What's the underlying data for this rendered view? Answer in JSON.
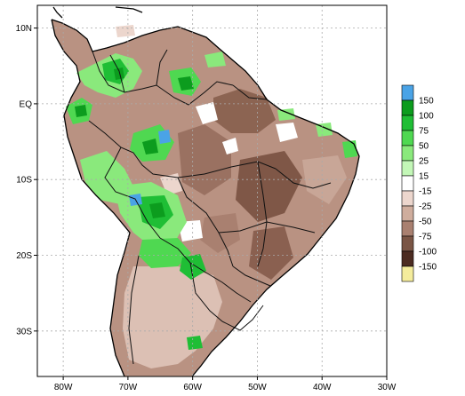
{
  "map": {
    "y_axis_labels": [
      {
        "text": "10N",
        "lat": 10
      },
      {
        "text": "EQ",
        "lat": 0
      },
      {
        "text": "10S",
        "lat": -10
      },
      {
        "text": "20S",
        "lat": -20
      },
      {
        "text": "30S",
        "lat": -30
      }
    ],
    "x_axis_labels": [
      {
        "text": "80W",
        "lon": -80
      },
      {
        "text": "70W",
        "lon": -70
      },
      {
        "text": "60W",
        "lon": -60
      },
      {
        "text": "50W",
        "lon": -50
      },
      {
        "text": "40W",
        "lon": -40
      },
      {
        "text": "30W",
        "lon": -30
      }
    ],
    "extent": {
      "lon_min": -84,
      "lon_max": -30,
      "lat_min": -36,
      "lat_max": 13
    },
    "regions": [
      {
        "name": "legend-upper-east-amazon",
        "category": "150",
        "color": "#4aa3e6"
      }
    ]
  },
  "legend": {
    "items": [
      {
        "label": "150",
        "color": "#4aa3e6"
      },
      {
        "label": "100",
        "color": "#0c9c1e"
      },
      {
        "label": "75",
        "color": "#1fbe35"
      },
      {
        "label": "50",
        "color": "#4fd851"
      },
      {
        "label": "25",
        "color": "#8ae97c"
      },
      {
        "label": "15",
        "color": "#c3f7b7"
      },
      {
        "label": "-15",
        "color": "#ffffff"
      },
      {
        "label": "-25",
        "color": "#ecd6cd"
      },
      {
        "label": "-50",
        "color": "#cfad9d"
      },
      {
        "label": "-75",
        "color": "#a98070"
      },
      {
        "label": "-100",
        "color": "#7a5545"
      },
      {
        "label": "-150",
        "color": "#4c2c22"
      },
      {
        "label": "",
        "color": "#f4ec9c"
      }
    ]
  }
}
